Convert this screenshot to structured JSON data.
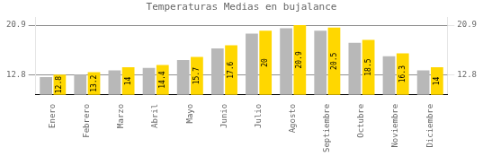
{
  "chart_data": {
    "type": "bar",
    "title": "Temperaturas Medias en bujalance",
    "categories": [
      "Enero",
      "Febrero",
      "Marzo",
      "Abril",
      "Mayo",
      "Junio",
      "Julio",
      "Agosto",
      "Septiembre",
      "Octubre",
      "Noviembre",
      "Diciembre"
    ],
    "series": [
      {
        "color": "#B8B8B8",
        "values": [
          12.4,
          12.8,
          13.5,
          13.9,
          15.2,
          17.1,
          19.5,
          20.4,
          20.0,
          18.0,
          15.8,
          13.5
        ]
      },
      {
        "color": "#FFD700",
        "data_labels": true,
        "values": [
          12.8,
          13.2,
          14.0,
          14.4,
          15.7,
          17.6,
          20.0,
          20.9,
          20.5,
          18.5,
          16.3,
          14.0
        ]
      }
    ],
    "ylim": [
      9.5,
      22.2
    ],
    "yticks": [
      12.8,
      20.9
    ],
    "y2lim": [
      9.5,
      22.2
    ],
    "y2ticks": [
      12.8,
      20.9
    ],
    "grid": true
  }
}
